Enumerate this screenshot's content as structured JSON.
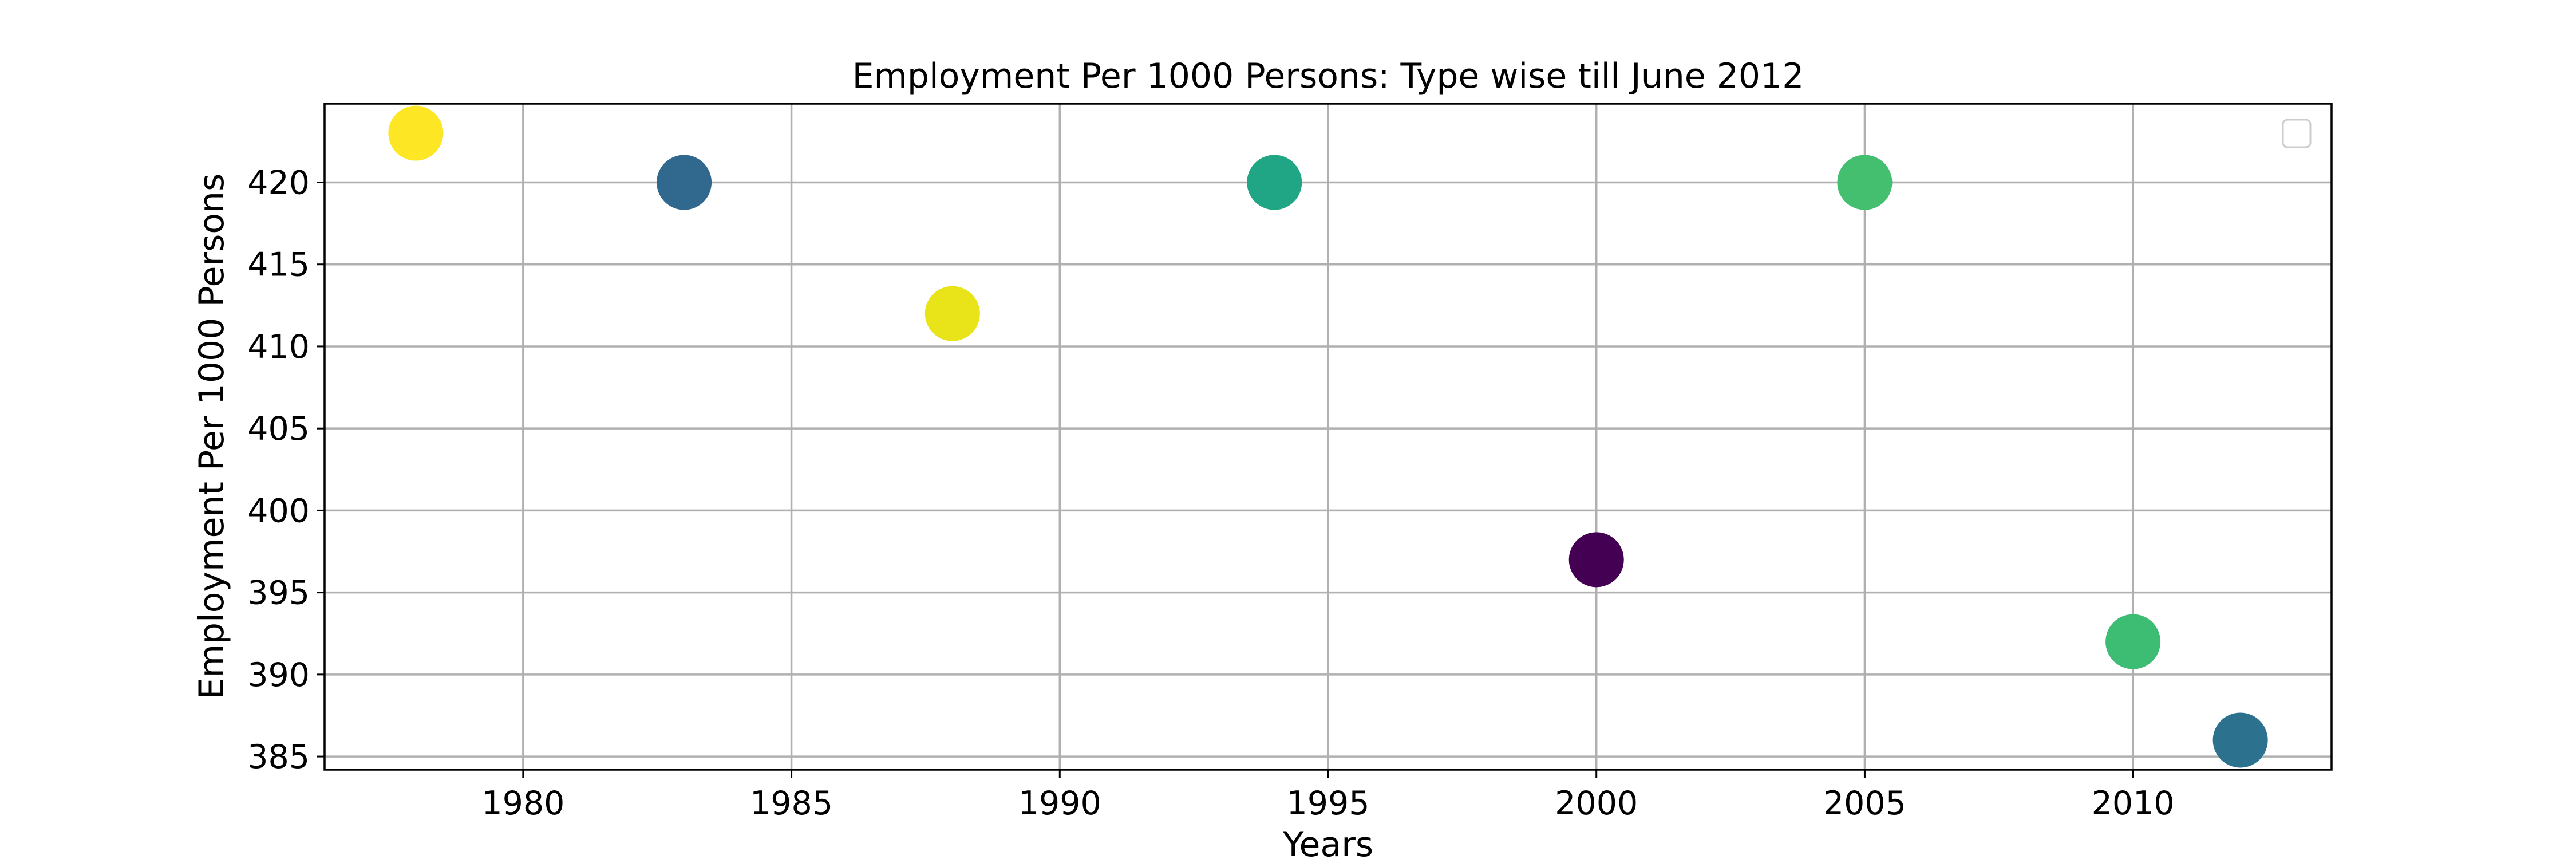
{
  "chart_data": {
    "type": "scatter",
    "title": "Employment Per 1000 Persons: Type wise till June 2012",
    "xlabel": "Years",
    "ylabel": "Employment Per 1000 Persons",
    "xlim": [
      1976.3,
      2013.7
    ],
    "ylim": [
      384.2,
      424.8
    ],
    "xticks": [
      1980,
      1985,
      1990,
      1995,
      2000,
      2005,
      2010
    ],
    "yticks": [
      385,
      390,
      395,
      400,
      405,
      410,
      415,
      420
    ],
    "grid": true,
    "legend": "top-right, empty",
    "points": [
      {
        "x": 1978,
        "y": 423,
        "color": "#fde725"
      },
      {
        "x": 1983,
        "y": 420,
        "color": "#31688e"
      },
      {
        "x": 1988,
        "y": 412,
        "color": "#e8e419"
      },
      {
        "x": 1994,
        "y": 420,
        "color": "#21a685"
      },
      {
        "x": 2000,
        "y": 397,
        "color": "#440154"
      },
      {
        "x": 2005,
        "y": 420,
        "color": "#44bf70"
      },
      {
        "x": 2010,
        "y": 392,
        "color": "#3dbc74"
      },
      {
        "x": 2012,
        "y": 386,
        "color": "#2c728e"
      }
    ]
  }
}
